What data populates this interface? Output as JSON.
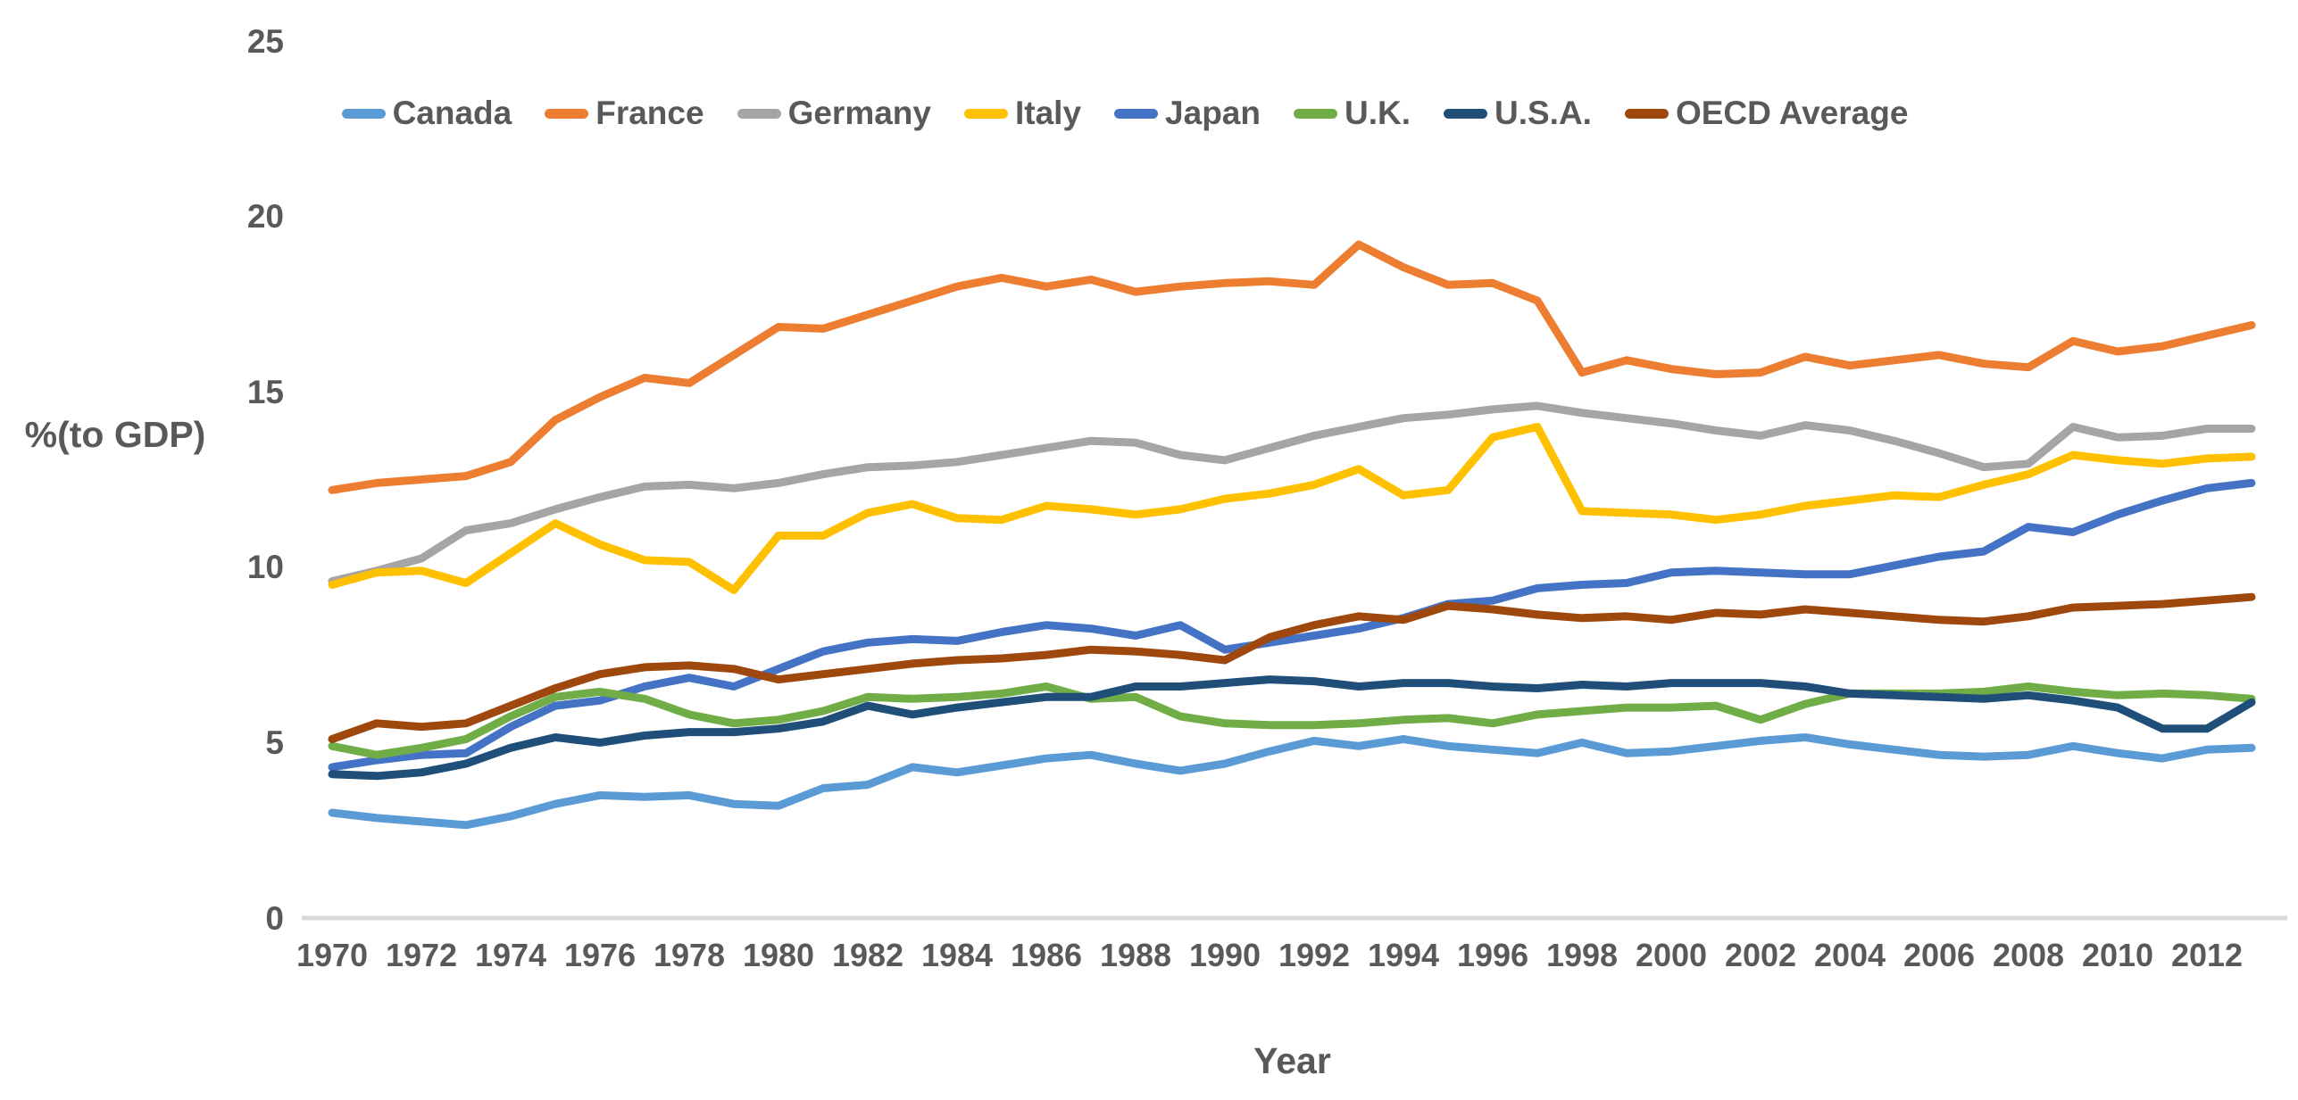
{
  "chart_data": {
    "type": "line",
    "title": "",
    "xlabel": "Year",
    "ylabel": "%(to GDP)",
    "x": [
      1970,
      1971,
      1972,
      1973,
      1974,
      1975,
      1976,
      1977,
      1978,
      1979,
      1980,
      1981,
      1982,
      1983,
      1984,
      1985,
      1986,
      1987,
      1988,
      1989,
      1990,
      1991,
      1992,
      1993,
      1994,
      1995,
      1996,
      1997,
      1998,
      1999,
      2000,
      2001,
      2002,
      2003,
      2004,
      2005,
      2006,
      2007,
      2008,
      2009,
      2010,
      2011,
      2012,
      2013
    ],
    "x_tick_labels": [
      "1970",
      "1972",
      "1974",
      "1976",
      "1978",
      "1980",
      "1982",
      "1984",
      "1986",
      "1988",
      "1990",
      "1992",
      "1994",
      "1996",
      "1998",
      "2000",
      "2002",
      "2004",
      "2006",
      "2008",
      "2010",
      "2012"
    ],
    "y_ticks": [
      0,
      5,
      10,
      15,
      20,
      25
    ],
    "ylim": [
      0,
      25
    ],
    "grid": false,
    "legend_position": "top",
    "axis_text_color": "#595959",
    "axis_line_color": "#D9D9D9",
    "series": [
      {
        "name": "Canada",
        "color": "#5B9BD5",
        "values": [
          3.0,
          2.85,
          2.75,
          2.65,
          2.9,
          3.25,
          3.5,
          3.45,
          3.5,
          3.25,
          3.2,
          3.7,
          3.8,
          4.3,
          4.15,
          4.35,
          4.55,
          4.65,
          4.4,
          4.2,
          4.4,
          4.75,
          5.05,
          4.9,
          5.1,
          4.9,
          4.8,
          4.7,
          5.0,
          4.7,
          4.75,
          4.9,
          5.05,
          5.15,
          4.95,
          4.8,
          4.65,
          4.6,
          4.65,
          4.9,
          4.7,
          4.55,
          4.8,
          4.85
        ]
      },
      {
        "name": "France",
        "color": "#ED7D31",
        "values": [
          12.2,
          12.4,
          12.5,
          12.6,
          13.0,
          14.2,
          14.85,
          15.4,
          15.25,
          16.05,
          16.85,
          16.8,
          17.2,
          17.6,
          18.0,
          18.25,
          18.0,
          18.2,
          17.85,
          18.0,
          18.1,
          18.15,
          18.05,
          19.2,
          18.55,
          18.05,
          18.1,
          17.6,
          15.55,
          15.9,
          15.65,
          15.5,
          15.55,
          16.0,
          15.75,
          15.9,
          16.05,
          15.8,
          15.7,
          16.45,
          16.15,
          16.3,
          16.6,
          16.9
        ]
      },
      {
        "name": "Germany",
        "color": "#A5A5A5",
        "values": [
          9.6,
          9.9,
          10.25,
          11.05,
          11.25,
          11.65,
          12.0,
          12.3,
          12.35,
          12.25,
          12.4,
          12.65,
          12.85,
          12.9,
          13.0,
          13.2,
          13.4,
          13.6,
          13.55,
          13.2,
          13.05,
          13.4,
          13.75,
          14.0,
          14.25,
          14.35,
          14.5,
          14.6,
          14.4,
          14.25,
          14.1,
          13.9,
          13.75,
          14.05,
          13.9,
          13.6,
          13.25,
          12.85,
          12.95,
          14.0,
          13.7,
          13.75,
          13.95,
          13.95
        ]
      },
      {
        "name": "Italy",
        "color": "#FFC000",
        "values": [
          9.5,
          9.85,
          9.9,
          9.55,
          10.4,
          11.25,
          10.65,
          10.2,
          10.15,
          9.35,
          10.9,
          10.9,
          11.55,
          11.8,
          11.4,
          11.35,
          11.75,
          11.65,
          11.5,
          11.65,
          11.95,
          12.1,
          12.35,
          12.8,
          12.05,
          12.2,
          13.7,
          14.0,
          11.6,
          11.55,
          11.5,
          11.35,
          11.5,
          11.75,
          11.9,
          12.05,
          12.0,
          12.35,
          12.65,
          13.2,
          13.05,
          12.95,
          13.1,
          13.15
        ]
      },
      {
        "name": "Japan",
        "color": "#4472C4",
        "values": [
          4.3,
          4.5,
          4.65,
          4.7,
          5.45,
          6.05,
          6.2,
          6.6,
          6.85,
          6.6,
          7.1,
          7.6,
          7.85,
          7.95,
          7.9,
          8.15,
          8.35,
          8.25,
          8.05,
          8.35,
          7.65,
          7.85,
          8.05,
          8.25,
          8.55,
          8.95,
          9.05,
          9.4,
          9.5,
          9.55,
          9.85,
          9.9,
          9.85,
          9.8,
          9.8,
          10.05,
          10.3,
          10.45,
          11.15,
          11.0,
          11.5,
          11.9,
          12.25,
          12.4
        ]
      },
      {
        "name": "U.K.",
        "color": "#70AD47",
        "values": [
          4.9,
          4.65,
          4.85,
          5.1,
          5.75,
          6.3,
          6.45,
          6.25,
          5.8,
          5.55,
          5.65,
          5.9,
          6.3,
          6.25,
          6.3,
          6.4,
          6.6,
          6.25,
          6.3,
          5.75,
          5.55,
          5.5,
          5.5,
          5.55,
          5.65,
          5.7,
          5.55,
          5.8,
          5.9,
          6.0,
          6.0,
          6.05,
          5.65,
          6.1,
          6.4,
          6.4,
          6.4,
          6.45,
          6.6,
          6.45,
          6.35,
          6.4,
          6.35,
          6.25
        ]
      },
      {
        "name": "U.S.A.",
        "color": "#1F4E79",
        "values": [
          4.1,
          4.05,
          4.15,
          4.4,
          4.85,
          5.15,
          5.0,
          5.2,
          5.3,
          5.3,
          5.4,
          5.6,
          6.05,
          5.8,
          6.0,
          6.15,
          6.3,
          6.3,
          6.6,
          6.6,
          6.7,
          6.8,
          6.75,
          6.6,
          6.7,
          6.7,
          6.6,
          6.55,
          6.65,
          6.6,
          6.7,
          6.7,
          6.7,
          6.6,
          6.4,
          6.35,
          6.3,
          6.25,
          6.35,
          6.2,
          6.0,
          5.4,
          5.4,
          6.15
        ]
      },
      {
        "name": "OECD Average",
        "color": "#9E480E",
        "values": [
          5.1,
          5.55,
          5.45,
          5.55,
          6.05,
          6.55,
          6.95,
          7.15,
          7.2,
          7.1,
          6.8,
          6.95,
          7.1,
          7.25,
          7.35,
          7.4,
          7.5,
          7.65,
          7.6,
          7.5,
          7.35,
          8.0,
          8.35,
          8.6,
          8.5,
          8.9,
          8.8,
          8.65,
          8.55,
          8.6,
          8.5,
          8.7,
          8.65,
          8.8,
          8.7,
          8.6,
          8.5,
          8.45,
          8.6,
          8.85,
          8.9,
          8.95,
          9.05,
          9.15
        ]
      }
    ]
  }
}
